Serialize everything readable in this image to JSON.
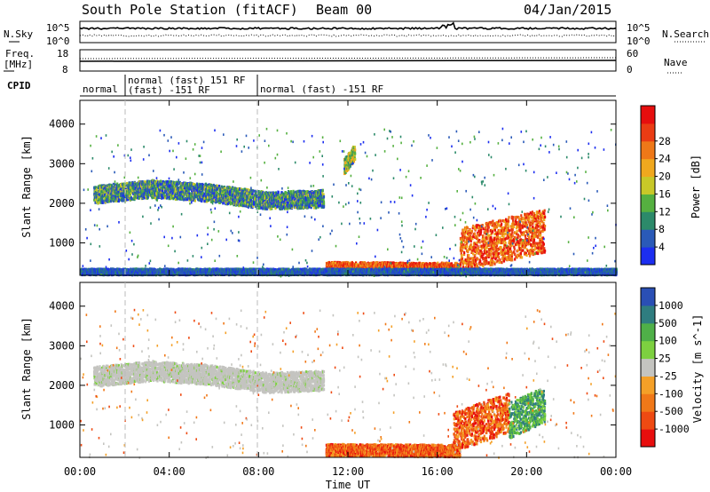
{
  "header": {
    "station": "South Pole Station (fitACF)",
    "beam": "Beam 00",
    "date": "04/Jan/2015"
  },
  "aux_panels": {
    "nsky_label": "N.Sky",
    "nsky_ticks": [
      "10^5",
      "10^0"
    ],
    "nsearch_label": "N.Search",
    "nsearch_ticks": [
      "10^5",
      "10^0"
    ],
    "freq_label": [
      "Freq.",
      "[MHz]"
    ],
    "freq_ticks": [
      "18",
      "8"
    ],
    "nave_label": "Nave",
    "nave_ticks": [
      "60",
      "0"
    ],
    "cpid_label": "CPID",
    "cpid_segments": [
      {
        "lines": [
          "normal"
        ]
      },
      {
        "lines": [
          "normal (fast) 151 RF",
          "(fast) -151 RF"
        ]
      },
      {
        "lines": [
          "normal (fast) -151 RF"
        ]
      }
    ]
  },
  "chart_data": [
    {
      "type": "heatmap",
      "name": "power",
      "ylabel": "Slant Range [km]",
      "xlabel": "",
      "x_range_hours": [
        0,
        24
      ],
      "ylim": [
        180,
        4600
      ],
      "yticks": [
        1000,
        2000,
        3000,
        4000
      ],
      "colorbar": {
        "label": "Power [dB]",
        "ticks": [
          4,
          8,
          12,
          16,
          20,
          24,
          28
        ],
        "colors": [
          "#1c2ef0",
          "#2a5ab8",
          "#2c8a6a",
          "#55b040",
          "#c8c828",
          "#f0a81e",
          "#ee7818",
          "#ea3c14",
          "#e60e0e"
        ]
      },
      "regions": [
        {
          "t0": 0.6,
          "t1": 10.9,
          "r_center": [
            2200,
            2350,
            2250,
            2050,
            2100
          ],
          "width": 220,
          "level": "low-mid"
        },
        {
          "t0": 11.8,
          "t1": 12.3,
          "r_center": [
            2900,
            3300
          ],
          "width": 200,
          "level": "mid"
        },
        {
          "t0": 11.0,
          "t1": 17.0,
          "r_center": [
            350,
            330
          ],
          "width": 150,
          "level": "high"
        },
        {
          "t0": 17.0,
          "t1": 20.8,
          "r_center": [
            800,
            1300
          ],
          "width": 550,
          "level": "high"
        },
        {
          "t0": 0.0,
          "t1": 24.0,
          "r_center": [
            250,
            250
          ],
          "width": 80,
          "level": "low"
        }
      ]
    },
    {
      "type": "heatmap",
      "name": "velocity",
      "ylabel": "Slant Range [km]",
      "xlabel": "Time UT",
      "x_range_hours": [
        0,
        24
      ],
      "ylim": [
        180,
        4600
      ],
      "yticks": [
        1000,
        2000,
        3000,
        4000
      ],
      "xticks": [
        "00:00",
        "04:00",
        "08:00",
        "12:00",
        "16:00",
        "20:00",
        "00:00"
      ],
      "colorbar": {
        "label": "Velocity [m s^-1]",
        "ticks": [
          1000,
          500,
          100,
          25,
          -25,
          -100,
          -500,
          -1000
        ],
        "colors": [
          "#2a4fb5",
          "#2f7d80",
          "#4fb048",
          "#7dd040",
          "#c4c4c0",
          "#f4a028",
          "#f07818",
          "#ee4a12",
          "#e80e0e"
        ]
      },
      "regions": [
        {
          "t0": 0.6,
          "t1": 10.9,
          "r_center": [
            2200,
            2350,
            2250,
            2050,
            2100
          ],
          "width": 250,
          "level": "ground"
        },
        {
          "t0": 11.0,
          "t1": 17.0,
          "r_center": [
            350,
            330
          ],
          "width": 150,
          "level": "negative"
        },
        {
          "t0": 16.7,
          "t1": 19.2,
          "r_center": [
            800,
            1300
          ],
          "width": 500,
          "level": "negative"
        },
        {
          "t0": 19.2,
          "t1": 20.8,
          "r_center": [
            1100,
            1500
          ],
          "width": 450,
          "level": "positive"
        }
      ]
    }
  ]
}
